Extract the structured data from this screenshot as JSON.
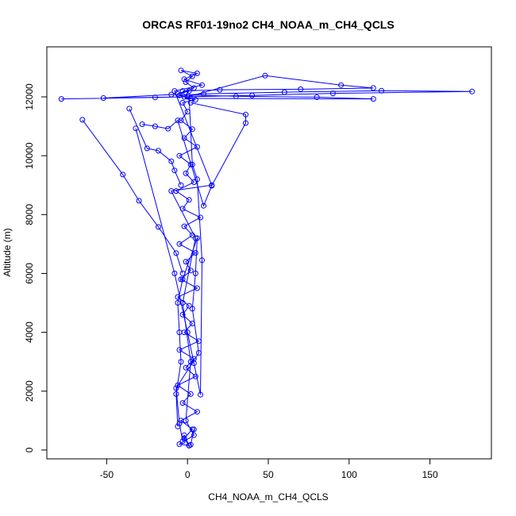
{
  "chart_data": {
    "type": "scatter",
    "title": "ORCAS RF01-19no2 CH4_NOAA_m_CH4_QCLS",
    "xlabel": "CH4_NOAA_m_CH4_QCLS",
    "ylabel": "Altitude (m)",
    "xlim": [
      -87,
      188
    ],
    "ylim": [
      -300,
      13700
    ],
    "xticks": [
      -50,
      0,
      50,
      100,
      150
    ],
    "yticks": [
      0,
      2000,
      4000,
      6000,
      8000,
      10000,
      12000
    ],
    "grid": false,
    "legend": "none",
    "series_color": "#0000ff",
    "marker": "open-circle",
    "connected": true,
    "series": [
      {
        "x": [
          1,
          -2,
          3,
          -4,
          6,
          -3,
          2,
          -6,
          5,
          -1,
          4,
          -5,
          7,
          -2,
          3,
          -3,
          1,
          -6,
          6,
          -4,
          2,
          -1,
          5,
          -5,
          3,
          -2,
          8,
          -3,
          1,
          -7,
          4,
          -1,
          2,
          -5,
          6,
          -2,
          3,
          -4,
          0,
          -3,
          5,
          -2,
          1,
          -6,
          4,
          -1,
          3,
          -4,
          6,
          -2,
          9,
          -8,
          15,
          -10,
          5,
          -3,
          2,
          -1,
          4,
          -5,
          1
        ],
        "y": [
          150,
          400,
          700,
          1000,
          1300,
          1600,
          1900,
          2200,
          2500,
          2800,
          3100,
          3400,
          3700,
          4000,
          4300,
          4600,
          4900,
          5200,
          5500,
          5800,
          6100,
          6400,
          6700,
          7000,
          7300,
          7600,
          7900,
          8200,
          8500,
          8800,
          9100,
          9400,
          9700,
          10000,
          10300,
          10600,
          10900,
          11200,
          11500,
          11800,
          11900,
          12000,
          12200,
          12100,
          12300,
          12500,
          12700,
          12900,
          12800,
          12600,
          12400,
          12200,
          9000,
          8800,
          7200,
          5000,
          3000,
          1000,
          500,
          200,
          150
        ]
      },
      {
        "x": [
          -78,
          -20,
          40,
          90,
          176,
          120,
          60,
          10,
          -5,
          2,
          115,
          80,
          30,
          -10,
          -52,
          0,
          48,
          95,
          115,
          70,
          20,
          -3
        ],
        "y": [
          11930,
          11980,
          12050,
          12120,
          12180,
          12210,
          12160,
          12100,
          12050,
          11950,
          11930,
          11990,
          12020,
          12080,
          11960,
          12000,
          12720,
          12400,
          12300,
          12260,
          12240,
          12200
        ]
      },
      {
        "x": [
          -65,
          -40,
          -30,
          -18,
          -7,
          -3
        ],
        "y": [
          11220,
          9360,
          8470,
          7580,
          6690,
          6000
        ]
      },
      {
        "x": [
          -36,
          -25,
          -18,
          -10,
          -8,
          -4
        ],
        "y": [
          11600,
          10250,
          10170,
          9810,
          9500,
          9000
        ]
      },
      {
        "x": [
          -28,
          -20,
          -12,
          -6,
          10,
          15,
          36,
          36,
          2
        ],
        "y": [
          11070,
          11000,
          10920,
          11200,
          8300,
          8980,
          11110,
          11400,
          11800
        ]
      },
      {
        "x": [
          -32,
          -8,
          0,
          4,
          8,
          9,
          6,
          3,
          1
        ],
        "y": [
          10930,
          6000,
          4000,
          2950,
          1880,
          6450,
          9200,
          9700,
          12000
        ]
      },
      {
        "x": [
          -6,
          -7,
          -4,
          -5,
          -6,
          -3,
          6,
          5,
          3,
          7,
          -7,
          -5,
          -3,
          -2,
          1,
          2,
          4
        ],
        "y": [
          800,
          1900,
          3000,
          4000,
          5000,
          5800,
          7200,
          6000,
          4800,
          3300,
          2100,
          900,
          300,
          500,
          150,
          180,
          700
        ]
      }
    ]
  }
}
